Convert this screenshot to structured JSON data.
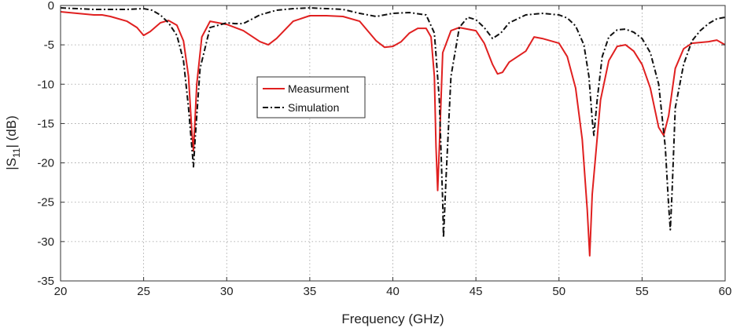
{
  "chart_data": {
    "type": "line",
    "title": "",
    "xlabel": "Frequency (GHz)",
    "ylabel": "|S11| (dB)",
    "ylabel_parts": {
      "prefix": "|S",
      "subscript": "11",
      "suffix": "| (dB)"
    },
    "xlim": [
      20,
      60
    ],
    "ylim": [
      -35,
      0
    ],
    "xticks": [
      20,
      25,
      30,
      35,
      40,
      45,
      50,
      55,
      60
    ],
    "yticks": [
      -35,
      -30,
      -25,
      -20,
      -15,
      -10,
      -5,
      0
    ],
    "grid": true,
    "legend": {
      "placement": "center-left"
    },
    "series": [
      {
        "name": "Measurment",
        "color": "#e02020",
        "style": "solid",
        "x": [
          20,
          21,
          22,
          22.5,
          23,
          24,
          24.6,
          25,
          25.4,
          26,
          26.5,
          27,
          27.4,
          27.7,
          27.9,
          28,
          28.2,
          28.5,
          29,
          30,
          31,
          32,
          32.5,
          33,
          34,
          35,
          36,
          37,
          38,
          39,
          39.5,
          40,
          40.5,
          41,
          41.5,
          42,
          42.3,
          42.5,
          42.6,
          42.7,
          42.8,
          43,
          43.5,
          44,
          45,
          45.5,
          46,
          46.3,
          46.6,
          47,
          48,
          48.5,
          49,
          50,
          50.5,
          51,
          51.4,
          51.7,
          51.85,
          52,
          52.5,
          53,
          53.5,
          54,
          54.5,
          55,
          55.5,
          56,
          56.3,
          56.6,
          57,
          57.5,
          58,
          59,
          59.5,
          60
        ],
        "y": [
          -0.8,
          -1.0,
          -1.2,
          -1.2,
          -1.4,
          -2.0,
          -2.8,
          -3.8,
          -3.3,
          -2.2,
          -1.9,
          -2.5,
          -4.5,
          -9.0,
          -16.0,
          -18.5,
          -10.0,
          -4.0,
          -2.0,
          -2.4,
          -3.2,
          -4.6,
          -5.0,
          -4.2,
          -2.0,
          -1.3,
          -1.3,
          -1.4,
          -2.0,
          -4.5,
          -5.3,
          -5.2,
          -4.6,
          -3.5,
          -2.9,
          -2.9,
          -4.0,
          -9.0,
          -18.0,
          -23.5,
          -18.0,
          -6.0,
          -3.2,
          -2.8,
          -3.2,
          -4.8,
          -7.5,
          -8.7,
          -8.5,
          -7.2,
          -5.8,
          -4.0,
          -4.2,
          -4.8,
          -6.5,
          -10.5,
          -17.0,
          -26.0,
          -31.8,
          -24.0,
          -12.0,
          -7.0,
          -5.2,
          -5.0,
          -5.8,
          -7.5,
          -10.5,
          -15.5,
          -16.5,
          -14.0,
          -8.0,
          -5.5,
          -4.8,
          -4.6,
          -4.4,
          -5.0
        ]
      },
      {
        "name": "Simulation",
        "color": "#111111",
        "style": "dashdot",
        "x": [
          20,
          21,
          22,
          23,
          24,
          25,
          25.5,
          26,
          26.5,
          27,
          27.4,
          27.7,
          27.9,
          28,
          28.1,
          28.4,
          29,
          30,
          30.5,
          31,
          32,
          33,
          34,
          35,
          36,
          37,
          38,
          39,
          40,
          41,
          42,
          42.5,
          42.8,
          43,
          43.05,
          43.2,
          43.5,
          44,
          44.5,
          45,
          45.5,
          46,
          46.5,
          47,
          48,
          49,
          50,
          50.5,
          51,
          51.5,
          51.8,
          52,
          52.1,
          52.3,
          52.6,
          53,
          53.5,
          54,
          54.5,
          55,
          55.5,
          56,
          56.4,
          56.6,
          56.7,
          56.8,
          57,
          57.5,
          58,
          58.5,
          59,
          59.5,
          60
        ],
        "y": [
          -0.3,
          -0.4,
          -0.5,
          -0.5,
          -0.5,
          -0.4,
          -0.6,
          -1.2,
          -2.2,
          -3.8,
          -7.0,
          -13.0,
          -18.0,
          -20.5,
          -17.0,
          -8.0,
          -2.8,
          -2.2,
          -2.3,
          -2.3,
          -1.2,
          -0.6,
          -0.4,
          -0.3,
          -0.4,
          -0.5,
          -1.0,
          -1.4,
          -1.0,
          -0.9,
          -1.2,
          -3.5,
          -12.0,
          -25.0,
          -29.5,
          -22.0,
          -9.0,
          -2.8,
          -1.5,
          -1.8,
          -2.8,
          -4.2,
          -3.5,
          -2.2,
          -1.2,
          -1.0,
          -1.2,
          -1.6,
          -2.6,
          -5.0,
          -9.0,
          -14.5,
          -16.5,
          -12.0,
          -6.5,
          -4.0,
          -3.1,
          -3.0,
          -3.4,
          -4.2,
          -6.0,
          -10.0,
          -18.0,
          -25.5,
          -28.5,
          -24.0,
          -13.0,
          -7.5,
          -4.5,
          -3.2,
          -2.3,
          -1.7,
          -1.5
        ]
      }
    ]
  }
}
